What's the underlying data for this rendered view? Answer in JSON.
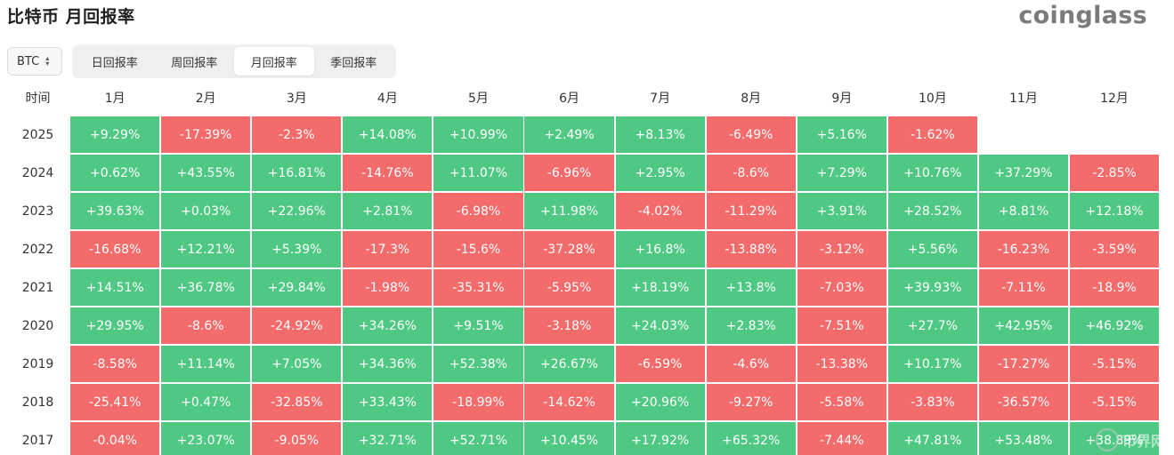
{
  "title": "比特币 月回报率",
  "logo": "coinglass",
  "coin_select": {
    "value": "BTC"
  },
  "tabs": [
    {
      "label": "日回报率",
      "active": false
    },
    {
      "label": "周回报率",
      "active": false
    },
    {
      "label": "月回报率",
      "active": true
    },
    {
      "label": "季回报率",
      "active": false
    }
  ],
  "table": {
    "corner": "时间",
    "months": [
      "1月",
      "2月",
      "3月",
      "4月",
      "5月",
      "6月",
      "7月",
      "8月",
      "9月",
      "10月",
      "11月",
      "12月"
    ],
    "rows": [
      {
        "year": "2025",
        "values": [
          "+9.29%",
          "-17.39%",
          "-2.3%",
          "+14.08%",
          "+10.99%",
          "+2.49%",
          "+8.13%",
          "-6.49%",
          "+5.16%",
          "-1.62%",
          "",
          ""
        ]
      },
      {
        "year": "2024",
        "values": [
          "+0.62%",
          "+43.55%",
          "+16.81%",
          "-14.76%",
          "+11.07%",
          "-6.96%",
          "+2.95%",
          "-8.6%",
          "+7.29%",
          "+10.76%",
          "+37.29%",
          "-2.85%"
        ]
      },
      {
        "year": "2023",
        "values": [
          "+39.63%",
          "+0.03%",
          "+22.96%",
          "+2.81%",
          "-6.98%",
          "+11.98%",
          "-4.02%",
          "-11.29%",
          "+3.91%",
          "+28.52%",
          "+8.81%",
          "+12.18%"
        ]
      },
      {
        "year": "2022",
        "values": [
          "-16.68%",
          "+12.21%",
          "+5.39%",
          "-17.3%",
          "-15.6%",
          "-37.28%",
          "+16.8%",
          "-13.88%",
          "-3.12%",
          "+5.56%",
          "-16.23%",
          "-3.59%"
        ]
      },
      {
        "year": "2021",
        "values": [
          "+14.51%",
          "+36.78%",
          "+29.84%",
          "-1.98%",
          "-35.31%",
          "-5.95%",
          "+18.19%",
          "+13.8%",
          "-7.03%",
          "+39.93%",
          "-7.11%",
          "-18.9%"
        ]
      },
      {
        "year": "2020",
        "values": [
          "+29.95%",
          "-8.6%",
          "-24.92%",
          "+34.26%",
          "+9.51%",
          "-3.18%",
          "+24.03%",
          "+2.83%",
          "-7.51%",
          "+27.7%",
          "+42.95%",
          "+46.92%"
        ]
      },
      {
        "year": "2019",
        "values": [
          "-8.58%",
          "+11.14%",
          "+7.05%",
          "+34.36%",
          "+52.38%",
          "+26.67%",
          "-6.59%",
          "-4.6%",
          "-13.38%",
          "+10.17%",
          "-17.27%",
          "-5.15%"
        ]
      },
      {
        "year": "2018",
        "values": [
          "-25.41%",
          "+0.47%",
          "-32.85%",
          "+33.43%",
          "-18.99%",
          "-14.62%",
          "+20.96%",
          "-9.27%",
          "-5.58%",
          "-3.83%",
          "-36.57%",
          "-5.15%"
        ]
      },
      {
        "year": "2017",
        "values": [
          "-0.04%",
          "+23.07%",
          "-9.05%",
          "+32.71%",
          "+52.71%",
          "+10.45%",
          "+17.92%",
          "+65.32%",
          "-7.44%",
          "+47.81%",
          "+53.48%",
          "+38.89%"
        ]
      }
    ]
  },
  "colors": {
    "positive": "#4fc883",
    "negative": "#f36b6b"
  },
  "watermark": "币界网"
}
